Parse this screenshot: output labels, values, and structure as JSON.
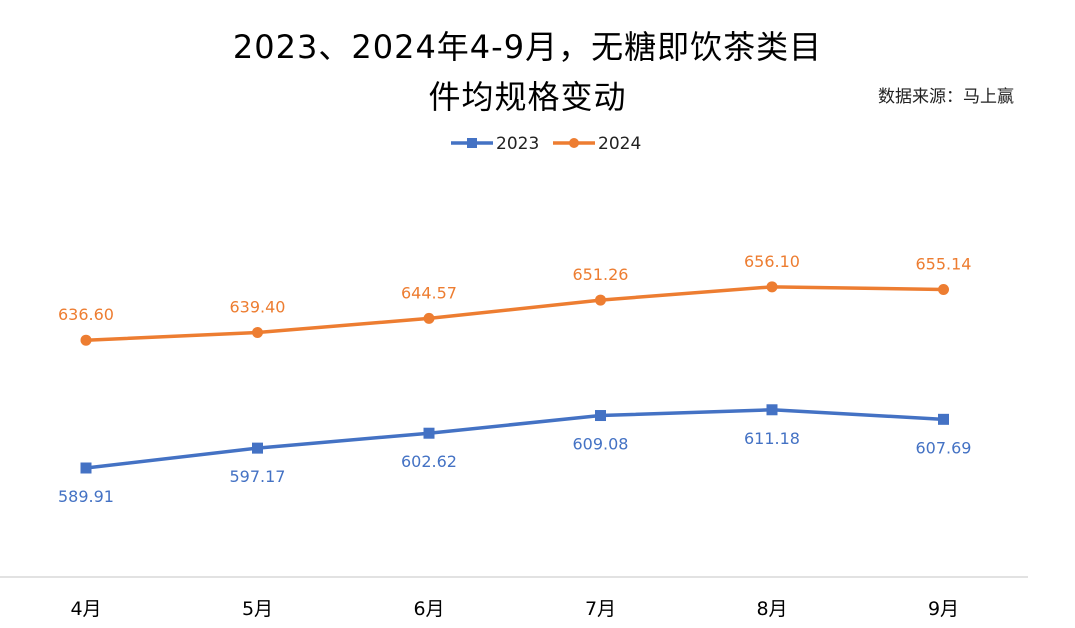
{
  "header": {
    "title_line1": "2023、2024年4-9月，无糖即饮茶类目",
    "title_line2": "件均规格变动",
    "source": "数据来源：马上赢"
  },
  "colors": {
    "s2023": "#4472C4",
    "s2024": "#ED7D31",
    "axis": "#D9D9D9"
  },
  "chart_data": {
    "type": "line",
    "title": "2023、2024年4-9月，无糖即饮茶类目件均规格变动",
    "categories": [
      "4月",
      "5月",
      "6月",
      "7月",
      "8月",
      "9月"
    ],
    "series": [
      {
        "name": "2023",
        "marker": "square",
        "values": [
          589.91,
          597.17,
          602.62,
          609.08,
          611.18,
          607.69
        ],
        "labels": [
          "589.91",
          "597.17",
          "602.62",
          "609.08",
          "611.18",
          "607.69"
        ]
      },
      {
        "name": "2024",
        "marker": "circle",
        "values": [
          636.6,
          639.4,
          644.57,
          651.26,
          656.1,
          655.14
        ],
        "labels": [
          "636.60",
          "639.40",
          "644.57",
          "651.26",
          "656.10",
          "655.14"
        ]
      }
    ],
    "legend": "top-center",
    "data_labels": true,
    "grid": false,
    "y_axis_visible": false
  }
}
